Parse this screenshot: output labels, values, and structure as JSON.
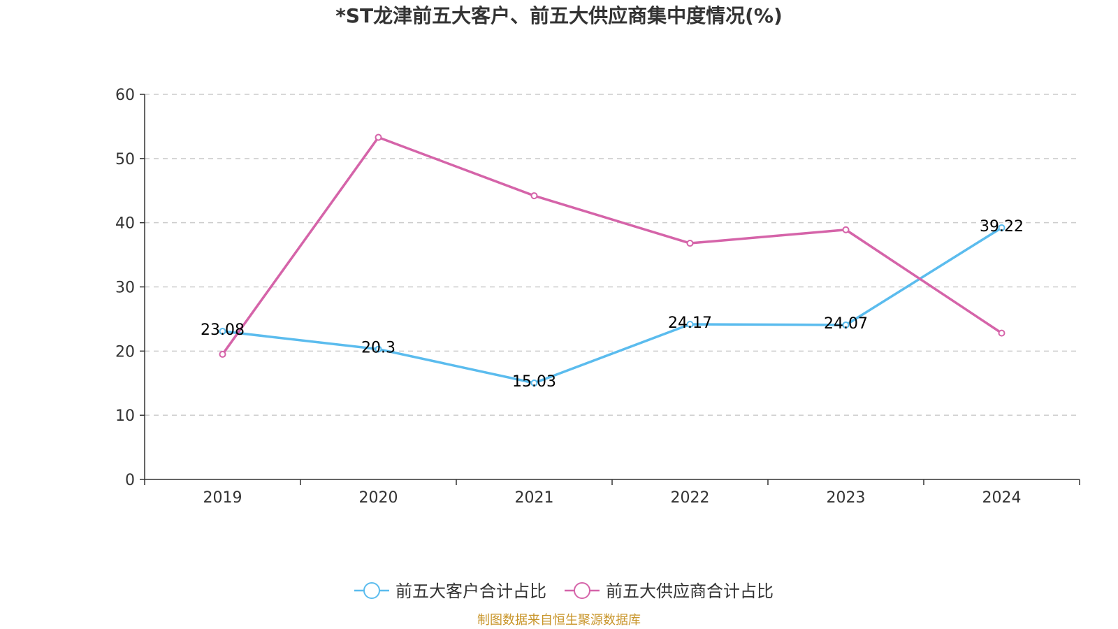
{
  "chart_data": {
    "type": "line",
    "title": "*ST龙津前五大客户、前五大供应商集中度情况(%)",
    "categories": [
      "2019",
      "2020",
      "2021",
      "2022",
      "2023",
      "2024"
    ],
    "ylim": [
      0,
      60
    ],
    "yticks": [
      0,
      10,
      20,
      30,
      40,
      50,
      60
    ],
    "grid": true,
    "legend_position": "bottom",
    "series": [
      {
        "name": "前五大客户合计占比",
        "color": "#5bbcee",
        "values": [
          23.08,
          20.3,
          15.03,
          24.17,
          24.07,
          39.22
        ],
        "labels": [
          "23.08",
          "20.3",
          "15.03",
          "24.17",
          "24.07",
          "39.22"
        ]
      },
      {
        "name": "前五大供应商合计占比",
        "color": "#d564a9",
        "values": [
          19.5,
          53.3,
          44.2,
          36.8,
          38.9,
          22.8
        ]
      }
    ]
  },
  "source": {
    "text": "制图数据来自恒生聚源数据库",
    "color": "#c8952a"
  }
}
